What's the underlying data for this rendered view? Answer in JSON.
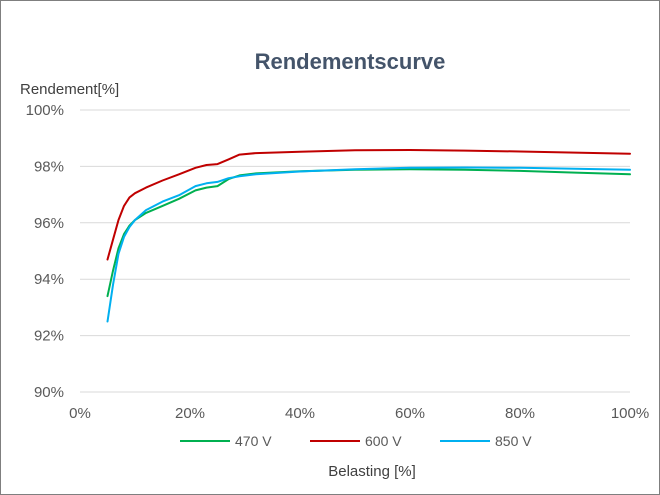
{
  "chart_data": {
    "type": "line",
    "title": "Rendementscurve",
    "xlabel": "Belasting [%]",
    "ylabel": "Rendement[%]",
    "xlim": [
      0,
      100
    ],
    "ylim": [
      90,
      100
    ],
    "x_ticks": [
      "0%",
      "20%",
      "40%",
      "60%",
      "80%",
      "100%"
    ],
    "y_ticks": [
      "90%",
      "92%",
      "94%",
      "96%",
      "98%",
      "100%"
    ],
    "grid": "horizontal",
    "legend_position": "bottom",
    "series": [
      {
        "name": "470 V",
        "color": "#00b050",
        "points": [
          [
            5,
            93.4
          ],
          [
            6,
            94.3
          ],
          [
            7,
            95.1
          ],
          [
            8,
            95.6
          ],
          [
            9,
            95.9
          ],
          [
            10,
            96.1
          ],
          [
            12,
            96.35
          ],
          [
            15,
            96.6
          ],
          [
            18,
            96.85
          ],
          [
            21,
            97.15
          ],
          [
            23,
            97.25
          ],
          [
            25,
            97.3
          ],
          [
            27,
            97.55
          ],
          [
            29,
            97.68
          ],
          [
            32,
            97.75
          ],
          [
            40,
            97.83
          ],
          [
            50,
            97.88
          ],
          [
            60,
            97.9
          ],
          [
            70,
            97.88
          ],
          [
            80,
            97.84
          ],
          [
            90,
            97.78
          ],
          [
            100,
            97.72
          ]
        ]
      },
      {
        "name": "600 V",
        "color": "#c00000",
        "points": [
          [
            5,
            94.7
          ],
          [
            6,
            95.4
          ],
          [
            7,
            96.1
          ],
          [
            8,
            96.6
          ],
          [
            9,
            96.9
          ],
          [
            10,
            97.05
          ],
          [
            12,
            97.25
          ],
          [
            15,
            97.5
          ],
          [
            18,
            97.72
          ],
          [
            21,
            97.95
          ],
          [
            23,
            98.05
          ],
          [
            25,
            98.08
          ],
          [
            27,
            98.25
          ],
          [
            29,
            98.42
          ],
          [
            32,
            98.47
          ],
          [
            40,
            98.52
          ],
          [
            50,
            98.57
          ],
          [
            60,
            98.58
          ],
          [
            70,
            98.56
          ],
          [
            80,
            98.53
          ],
          [
            90,
            98.49
          ],
          [
            100,
            98.45
          ]
        ]
      },
      {
        "name": "850 V",
        "color": "#00b0f0",
        "points": [
          [
            5,
            92.5
          ],
          [
            6,
            93.8
          ],
          [
            7,
            94.9
          ],
          [
            8,
            95.5
          ],
          [
            9,
            95.85
          ],
          [
            10,
            96.1
          ],
          [
            12,
            96.45
          ],
          [
            15,
            96.75
          ],
          [
            18,
            96.98
          ],
          [
            21,
            97.3
          ],
          [
            23,
            97.4
          ],
          [
            25,
            97.45
          ],
          [
            27,
            97.58
          ],
          [
            29,
            97.65
          ],
          [
            32,
            97.72
          ],
          [
            40,
            97.82
          ],
          [
            50,
            97.9
          ],
          [
            60,
            97.95
          ],
          [
            70,
            97.96
          ],
          [
            80,
            97.95
          ],
          [
            90,
            97.92
          ],
          [
            100,
            97.88
          ]
        ]
      }
    ]
  }
}
